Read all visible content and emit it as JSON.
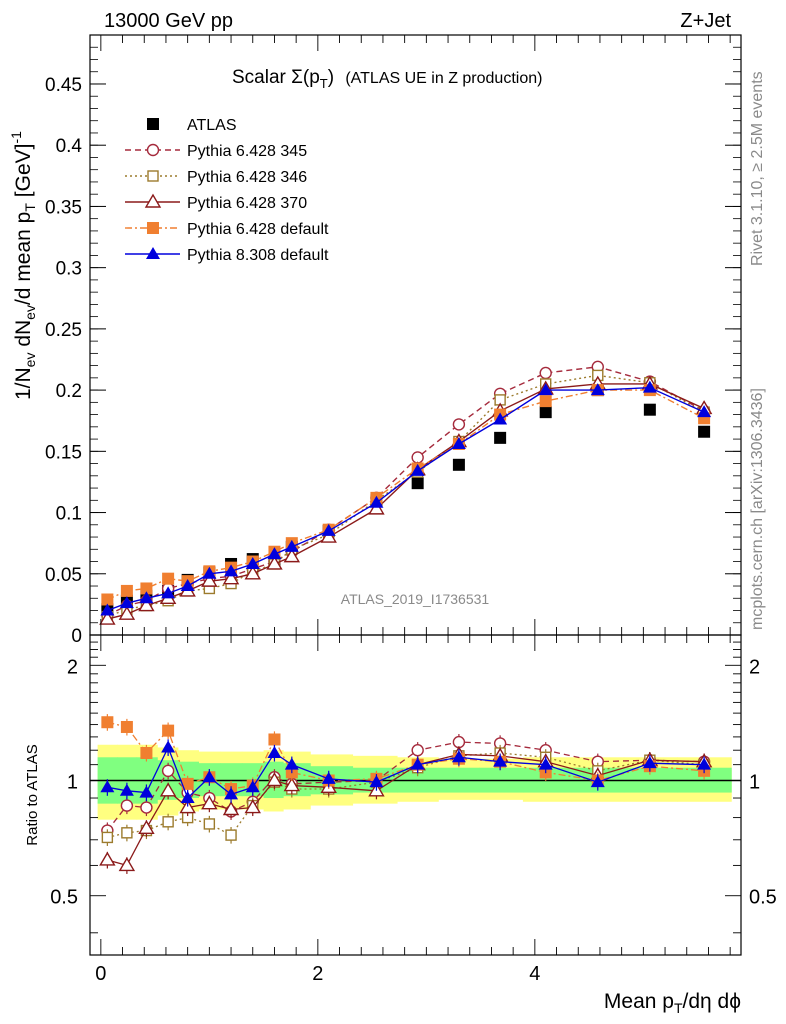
{
  "header": {
    "left": "13000 GeV pp",
    "right": "Z+Jet"
  },
  "side_labels": {
    "rivet": "Rivet 3.1.10, ≥ 2.5M events",
    "mcplots": "mcplots.cern.ch [arXiv:1306.3436]"
  },
  "watermark": "ATLAS_2019_I1736531",
  "chart_data": [
    {
      "type": "scatter",
      "title_parts": {
        "main": "Scalar Σ(p",
        "sub": "T",
        "close": ")",
        "rest": "(ATLAS UE in Z production)"
      },
      "ylabel_parts": {
        "a": "1/N",
        "a_sub": "ev",
        "b": " dN",
        "b_sub": "ev",
        "c": "/d mean p",
        "c_sub": "T",
        "d": " [GeV]",
        "d_sup": "-1"
      },
      "xlim": [
        -0.1,
        5.9
      ],
      "ylim": [
        0,
        0.49
      ],
      "y_ticks": [
        0,
        0.05,
        0.1,
        0.15,
        0.2,
        0.25,
        0.3,
        0.35,
        0.4,
        0.45
      ],
      "y_tick_labels": [
        "0",
        "0.05",
        "0.1",
        "0.15",
        "0.2",
        "0.25",
        "0.3",
        "0.35",
        "0.4",
        "0.45"
      ],
      "legend_placement": "top-left",
      "x": [
        0.06,
        0.24,
        0.42,
        0.62,
        0.8,
        1.0,
        1.2,
        1.4,
        1.6,
        1.76,
        2.1,
        2.54,
        2.92,
        3.3,
        3.68,
        4.1,
        4.58,
        5.06,
        5.56
      ],
      "series": [
        {
          "name": "ATLAS",
          "color": "#000000",
          "marker": "square-filled",
          "line": "none",
          "values": [
            0.021,
            0.028,
            0.032,
            0.036,
            0.045,
            0.051,
            0.058,
            0.062,
            0.06,
            0.072,
            0.085,
            0.11,
            0.124,
            0.139,
            0.161,
            0.182,
            0.2,
            0.184,
            0.166
          ]
        },
        {
          "name": "Pythia 6.428 345",
          "color": "#a52a3c",
          "marker": "circle-open",
          "line": "dashed",
          "values": [
            0.016,
            0.024,
            0.028,
            0.038,
            0.042,
            0.046,
            0.048,
            0.054,
            0.06,
            0.068,
            0.086,
            0.112,
            0.145,
            0.172,
            0.197,
            0.214,
            0.219,
            0.207,
            0.183
          ]
        },
        {
          "name": "Pythia 6.428 346",
          "color": "#9c7b2d",
          "marker": "square-open",
          "line": "dotted",
          "values": [
            0.015,
            0.021,
            0.024,
            0.028,
            0.036,
            0.038,
            0.042,
            0.052,
            0.058,
            0.07,
            0.082,
            0.11,
            0.133,
            0.158,
            0.192,
            0.205,
            0.212,
            0.206,
            0.182
          ]
        },
        {
          "name": "Pythia 6.428 370",
          "color": "#8b1a1a",
          "marker": "triangle-open",
          "line": "solid",
          "values": [
            0.013,
            0.017,
            0.024,
            0.03,
            0.036,
            0.044,
            0.046,
            0.05,
            0.058,
            0.064,
            0.08,
            0.103,
            0.135,
            0.158,
            0.183,
            0.201,
            0.205,
            0.205,
            0.185
          ]
        },
        {
          "name": "Pythia 6.428 default",
          "color": "#f07f30",
          "marker": "square-filled",
          "line": "dashdot",
          "values": [
            0.029,
            0.036,
            0.038,
            0.046,
            0.044,
            0.052,
            0.055,
            0.06,
            0.068,
            0.075,
            0.086,
            0.112,
            0.136,
            0.156,
            0.18,
            0.191,
            0.2,
            0.2,
            0.177
          ]
        },
        {
          "name": "Pythia 8.308 default",
          "color": "#0000dd",
          "marker": "triangle-filled",
          "line": "solid",
          "values": [
            0.02,
            0.026,
            0.03,
            0.034,
            0.04,
            0.05,
            0.052,
            0.058,
            0.066,
            0.072,
            0.085,
            0.108,
            0.134,
            0.156,
            0.176,
            0.2,
            0.2,
            0.202,
            0.182
          ]
        }
      ]
    },
    {
      "type": "scatter",
      "ylabel": "Ratio to ATLAS",
      "xlabel_parts": {
        "a": "Mean p",
        "a_sub": "T",
        "b": "/dη dϕ"
      },
      "xlim": [
        -0.1,
        5.9
      ],
      "ylim": [
        0.35,
        2.4
      ],
      "y_ticks": [
        0.5,
        1,
        2
      ],
      "y_tick_labels": [
        "0.5",
        "1",
        "2"
      ],
      "x_ticks": [
        0,
        2,
        4
      ],
      "x_tick_labels": [
        "0",
        "2",
        "4"
      ],
      "x": [
        0.06,
        0.24,
        0.42,
        0.62,
        0.8,
        1.0,
        1.2,
        1.4,
        1.6,
        1.76,
        2.1,
        2.54,
        2.92,
        3.3,
        3.68,
        4.1,
        4.58,
        5.06,
        5.56
      ],
      "band_yellow": [
        [
          0.79,
          1.24
        ],
        [
          0.79,
          1.24
        ],
        [
          0.79,
          1.24
        ],
        [
          0.81,
          1.22
        ],
        [
          0.83,
          1.2
        ],
        [
          0.84,
          1.19
        ],
        [
          0.84,
          1.19
        ],
        [
          0.84,
          1.19
        ],
        [
          0.83,
          1.2
        ],
        [
          0.84,
          1.19
        ],
        [
          0.86,
          1.17
        ],
        [
          0.87,
          1.16
        ],
        [
          0.88,
          1.15
        ],
        [
          0.89,
          1.14
        ],
        [
          0.89,
          1.14
        ],
        [
          0.88,
          1.15
        ],
        [
          0.88,
          1.15
        ],
        [
          0.88,
          1.15
        ],
        [
          0.88,
          1.15
        ]
      ],
      "band_green": [
        [
          0.87,
          1.15
        ],
        [
          0.87,
          1.15
        ],
        [
          0.87,
          1.15
        ],
        [
          0.89,
          1.13
        ],
        [
          0.9,
          1.12
        ],
        [
          0.91,
          1.11
        ],
        [
          0.91,
          1.11
        ],
        [
          0.91,
          1.11
        ],
        [
          0.9,
          1.12
        ],
        [
          0.91,
          1.11
        ],
        [
          0.92,
          1.09
        ],
        [
          0.93,
          1.08
        ],
        [
          0.93,
          1.08
        ],
        [
          0.93,
          1.08
        ],
        [
          0.93,
          1.08
        ],
        [
          0.93,
          1.08
        ],
        [
          0.93,
          1.08
        ],
        [
          0.93,
          1.08
        ],
        [
          0.93,
          1.08
        ]
      ],
      "series": [
        {
          "name": "Pythia 6.428 345",
          "color": "#a52a3c",
          "marker": "circle-open",
          "line": "dashed",
          "values": [
            0.74,
            0.86,
            0.85,
            1.06,
            0.93,
            0.9,
            0.83,
            0.88,
            1.02,
            0.98,
            0.99,
            1.0,
            1.2,
            1.26,
            1.25,
            1.2,
            1.12,
            1.13,
            1.12
          ]
        },
        {
          "name": "Pythia 6.428 346",
          "color": "#9c7b2d",
          "marker": "square-open",
          "line": "dotted",
          "values": [
            0.71,
            0.73,
            0.74,
            0.78,
            0.8,
            0.77,
            0.72,
            0.86,
            0.99,
            0.95,
            0.95,
            0.99,
            1.08,
            1.16,
            1.18,
            1.15,
            1.06,
            1.13,
            1.1
          ]
        },
        {
          "name": "Pythia 6.428 370",
          "color": "#8b1a1a",
          "marker": "triangle-open",
          "line": "solid",
          "values": [
            0.62,
            0.6,
            0.75,
            0.94,
            0.85,
            0.87,
            0.84,
            0.85,
            1.0,
            0.97,
            0.96,
            0.94,
            1.1,
            1.17,
            1.16,
            1.12,
            1.03,
            1.13,
            1.12
          ]
        },
        {
          "name": "Pythia 6.428 default",
          "color": "#f07f30",
          "marker": "square-filled",
          "line": "dashdot",
          "values": [
            1.42,
            1.38,
            1.18,
            1.35,
            0.98,
            1.02,
            0.95,
            0.97,
            1.28,
            1.05,
            1.0,
            1.01,
            1.1,
            1.14,
            1.12,
            1.05,
            1.0,
            1.09,
            1.06
          ]
        },
        {
          "name": "Pythia 8.308 default",
          "color": "#0000dd",
          "marker": "triangle-filled",
          "line": "solid",
          "values": [
            0.96,
            0.94,
            0.93,
            1.22,
            0.9,
            1.02,
            0.92,
            0.96,
            1.18,
            1.1,
            1.01,
            0.99,
            1.1,
            1.15,
            1.12,
            1.1,
            0.99,
            1.11,
            1.1
          ]
        }
      ]
    }
  ]
}
